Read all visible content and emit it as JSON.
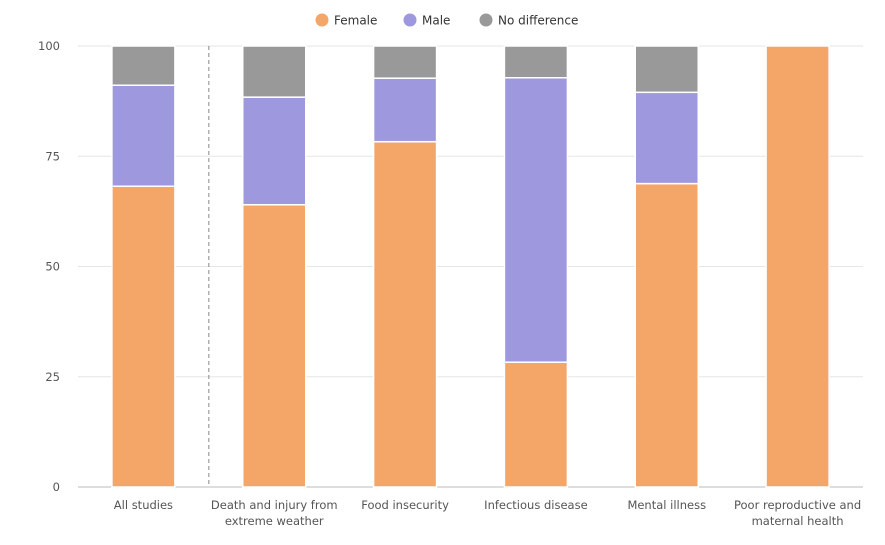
{
  "chart_data": {
    "type": "bar",
    "stacked": true,
    "categories": [
      [
        "All studies"
      ],
      [
        "Death and injury from",
        "extreme weather"
      ],
      [
        "Food insecurity"
      ],
      [
        "Infectious disease"
      ],
      [
        "Mental illness"
      ],
      [
        "Poor reproductive and",
        "maternal health"
      ]
    ],
    "series": [
      {
        "name": "Female",
        "color": "#f4a669",
        "values": [
          68.2,
          64,
          78.3,
          28.3,
          68.8,
          100
        ]
      },
      {
        "name": "Male",
        "color": "#9e98de",
        "values": [
          22.9,
          24.4,
          14.4,
          64.5,
          20.7,
          0
        ]
      },
      {
        "name": "No difference",
        "color": "#999999",
        "values": [
          8.9,
          11.6,
          7.3,
          7.2,
          10.5,
          0
        ]
      }
    ],
    "ylim": [
      0,
      100
    ],
    "yticks": [
      0,
      25,
      50,
      75,
      100
    ],
    "legend_position": "top-center",
    "grid": true
  }
}
